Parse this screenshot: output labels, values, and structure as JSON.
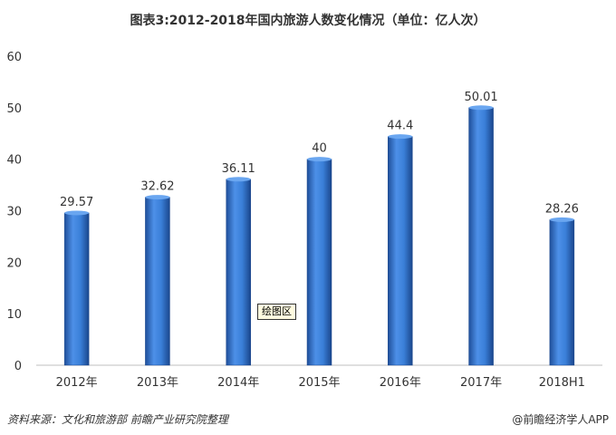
{
  "title": "图表3:2012-2018年国内旅游人数变化情况（单位：亿人次）",
  "tooltip": "绘图区",
  "footer": {
    "source": "资料来源：文化和旅游部   前瞻产业研究院整理",
    "brand": "@前瞻经济学人APP"
  },
  "colors": {
    "bar": "#3a7fd8",
    "bar_dark": "#1f4f9a",
    "grid": "#d9d9d9"
  },
  "chart_data": {
    "type": "bar",
    "categories": [
      "2012年",
      "2013年",
      "2014年",
      "2015年",
      "2016年",
      "2017年",
      "2018H1"
    ],
    "values": [
      29.57,
      32.62,
      36.11,
      40,
      44.4,
      50.01,
      28.26
    ],
    "value_labels": [
      "29.57",
      "32.62",
      "36.11",
      "40",
      "44.4",
      "50.01",
      "28.26"
    ],
    "y_ticks": [
      "0",
      "10",
      "20",
      "30",
      "40",
      "50",
      "60"
    ],
    "ylim": [
      0,
      60
    ],
    "grid": false
  }
}
